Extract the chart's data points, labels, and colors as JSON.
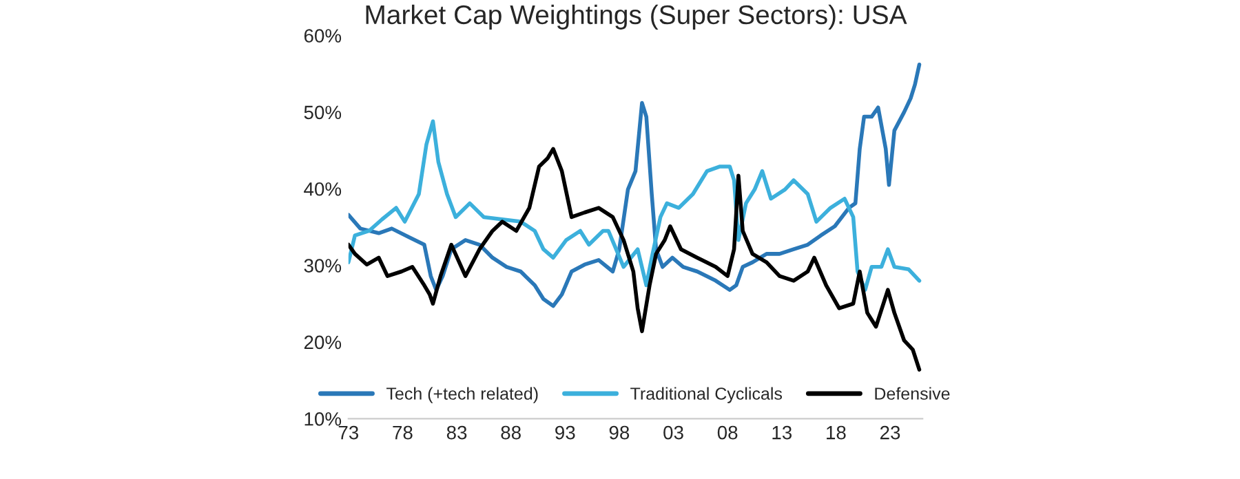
{
  "chart_data": {
    "type": "line",
    "title": "Market Cap Weightings (Super Sectors): USA",
    "xlim": [
      1973,
      2026
    ],
    "xticks": [
      {
        "value": 1973,
        "label": "73"
      },
      {
        "value": 1978,
        "label": "78"
      },
      {
        "value": 1983,
        "label": "83"
      },
      {
        "value": 1988,
        "label": "88"
      },
      {
        "value": 1993,
        "label": "93"
      },
      {
        "value": 1998,
        "label": "98"
      },
      {
        "value": 2003,
        "label": "03"
      },
      {
        "value": 2008,
        "label": "08"
      },
      {
        "value": 2013,
        "label": "13"
      },
      {
        "value": 2018,
        "label": "18"
      },
      {
        "value": 2023,
        "label": "23"
      }
    ],
    "ylim": [
      10,
      60
    ],
    "yticks": [
      {
        "value": 10,
        "label": "10%"
      },
      {
        "value": 20,
        "label": "20%"
      },
      {
        "value": 30,
        "label": "30%"
      },
      {
        "value": 40,
        "label": "40%"
      },
      {
        "value": 50,
        "label": "50%"
      },
      {
        "value": 60,
        "label": "60%"
      }
    ],
    "grid": false,
    "legend": "bottom",
    "marker": "none",
    "line_style": "solid",
    "series": [
      {
        "name": "Tech (+tech related)",
        "color": "#2a78b8",
        "x": [
          1973.0,
          1974.1,
          1975.8,
          1977.0,
          1978.7,
          1980.0,
          1980.6,
          1981.1,
          1981.7,
          1982.5,
          1983.8,
          1985.1,
          1986.3,
          1987.6,
          1988.9,
          1990.2,
          1991.0,
          1991.9,
          1992.7,
          1993.6,
          1994.8,
          1996.1,
          1997.4,
          1998.0,
          1998.8,
          1999.5,
          2000.1,
          2000.5,
          2001.0,
          2001.4,
          2002.0,
          2002.9,
          2003.9,
          2005.2,
          2006.9,
          2008.2,
          2008.8,
          2009.4,
          2010.3,
          2011.6,
          2012.8,
          2014.1,
          2015.4,
          2016.6,
          2017.9,
          2019.2,
          2019.8,
          2020.2,
          2020.6,
          2021.3,
          2021.9,
          2022.6,
          2022.9,
          2023.4,
          2024.3,
          2024.9,
          2025.3,
          2025.7
        ],
        "values": [
          36.6,
          34.8,
          34.2,
          34.8,
          33.6,
          32.7,
          28.6,
          26.8,
          28.6,
          32.1,
          33.3,
          32.7,
          31.0,
          29.8,
          29.2,
          27.4,
          25.6,
          24.7,
          26.2,
          29.2,
          30.1,
          30.7,
          29.2,
          32.1,
          39.9,
          42.3,
          51.2,
          49.4,
          39.3,
          32.1,
          29.8,
          31.0,
          29.8,
          29.2,
          28.0,
          26.8,
          27.4,
          29.8,
          30.4,
          31.5,
          31.5,
          32.1,
          32.7,
          33.9,
          35.1,
          37.5,
          38.1,
          45.2,
          49.4,
          49.4,
          50.6,
          45.2,
          40.5,
          47.6,
          50.0,
          51.8,
          53.6,
          56.2
        ]
      },
      {
        "name": "Traditional Cyclicals",
        "color": "#3cb0dc",
        "x": [
          1973.0,
          1973.6,
          1974.9,
          1976.1,
          1977.4,
          1978.2,
          1979.5,
          1980.2,
          1980.8,
          1981.3,
          1982.1,
          1982.9,
          1984.2,
          1985.5,
          1987.2,
          1988.9,
          1990.2,
          1991.0,
          1991.9,
          1993.1,
          1994.4,
          1995.2,
          1996.5,
          1997.0,
          1998.4,
          1999.7,
          2000.5,
          2001.0,
          2001.8,
          2002.4,
          2003.5,
          2004.8,
          2006.1,
          2007.3,
          2008.2,
          2008.6,
          2009.0,
          2009.7,
          2010.5,
          2011.2,
          2012.0,
          2013.3,
          2014.1,
          2015.4,
          2016.2,
          2017.5,
          2018.8,
          2019.6,
          2020.0,
          2020.7,
          2021.3,
          2022.2,
          2022.8,
          2023.4,
          2024.7,
          2025.7
        ],
        "values": [
          30.4,
          33.9,
          34.5,
          36.0,
          37.5,
          35.7,
          39.3,
          45.8,
          48.8,
          43.5,
          39.3,
          36.3,
          38.1,
          36.3,
          36.0,
          35.7,
          34.5,
          32.1,
          31.0,
          33.3,
          34.5,
          32.7,
          34.5,
          34.5,
          29.8,
          32.1,
          27.4,
          31.0,
          36.3,
          38.1,
          37.5,
          39.3,
          42.3,
          42.9,
          42.9,
          41.1,
          33.3,
          38.1,
          39.9,
          42.3,
          38.7,
          39.9,
          41.1,
          39.3,
          35.7,
          37.5,
          38.7,
          36.3,
          29.2,
          26.8,
          29.8,
          29.8,
          32.1,
          29.8,
          29.5,
          28.0
        ]
      },
      {
        "name": "Defensive",
        "color": "#000000",
        "x": [
          1973.0,
          1973.6,
          1974.7,
          1975.8,
          1976.6,
          1977.9,
          1978.9,
          1980.0,
          1980.5,
          1980.8,
          1981.5,
          1982.5,
          1983.8,
          1985.1,
          1986.3,
          1987.2,
          1988.5,
          1989.7,
          1990.6,
          1991.4,
          1991.9,
          1992.7,
          1993.6,
          1994.8,
          1996.1,
          1997.4,
          1998.4,
          1999.3,
          1999.7,
          2000.1,
          2000.8,
          2001.4,
          2002.2,
          2002.7,
          2003.7,
          2005.2,
          2006.9,
          2008.0,
          2008.6,
          2009.0,
          2009.4,
          2010.3,
          2011.6,
          2012.8,
          2014.1,
          2015.4,
          2016.0,
          2017.1,
          2018.3,
          2019.6,
          2020.2,
          2020.9,
          2021.7,
          2022.8,
          2023.4,
          2024.3,
          2025.1,
          2025.7
        ],
        "values": [
          32.7,
          31.5,
          30.1,
          31.0,
          28.6,
          29.2,
          29.8,
          27.4,
          26.2,
          25.0,
          28.6,
          32.7,
          28.6,
          32.1,
          34.5,
          35.7,
          34.5,
          37.5,
          42.9,
          44.0,
          45.2,
          42.3,
          36.3,
          36.9,
          37.5,
          36.3,
          33.3,
          29.2,
          24.4,
          21.4,
          27.4,
          31.5,
          33.3,
          35.1,
          32.1,
          31.0,
          29.8,
          28.6,
          32.1,
          41.7,
          34.5,
          31.5,
          30.4,
          28.6,
          28.0,
          29.2,
          31.0,
          27.4,
          24.4,
          25.0,
          29.2,
          23.8,
          22.0,
          26.8,
          23.8,
          20.2,
          19.0,
          16.4
        ]
      }
    ]
  }
}
